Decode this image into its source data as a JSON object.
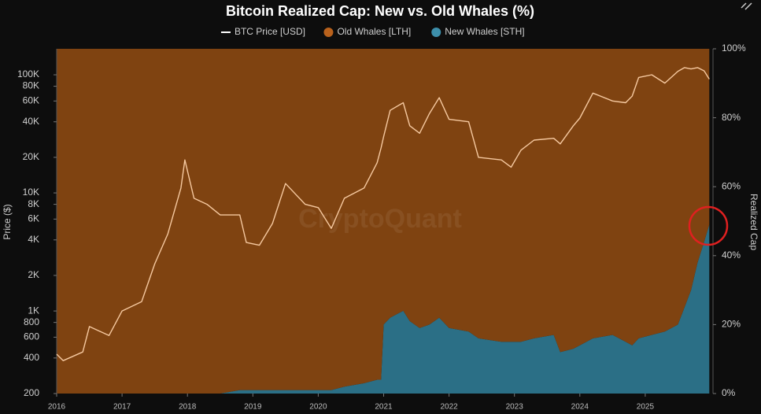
{
  "chart_data": {
    "type": "line",
    "title": "Bitcoin Realized Cap: New vs. Old Whales (%)",
    "ylabel": "Price ($)",
    "y2label": "Realized Cap",
    "watermark": "CryptoQuant",
    "log_y": true,
    "x": [
      2016.0,
      2016.1,
      2016.4,
      2016.5,
      2016.8,
      2017.0,
      2017.3,
      2017.5,
      2017.7,
      2017.9,
      2017.96,
      2018.1,
      2018.3,
      2018.5,
      2018.8,
      2018.9,
      2019.1,
      2019.3,
      2019.5,
      2019.8,
      2020.0,
      2020.2,
      2020.4,
      2020.7,
      2020.9,
      2020.96,
      2021.0,
      2021.1,
      2021.3,
      2021.4,
      2021.55,
      2021.7,
      2021.85,
      2022.0,
      2022.3,
      2022.45,
      2022.8,
      2022.95,
      2023.1,
      2023.3,
      2023.6,
      2023.7,
      2023.9,
      2024.0,
      2024.2,
      2024.5,
      2024.7,
      2024.8,
      2024.9,
      2025.1,
      2025.3,
      2025.5,
      2025.6,
      2025.7,
      2025.8,
      2025.9,
      2025.98
    ],
    "series": [
      {
        "name": "BTC Price [USD]",
        "type": "line",
        "axis": "y",
        "color": "#f6c9a0",
        "values": [
          431,
          380,
          450,
          738,
          620,
          1000,
          1200,
          2500,
          4500,
          11000,
          19000,
          9000,
          8000,
          6500,
          6500,
          3800,
          3600,
          5500,
          12000,
          8000,
          7500,
          5000,
          9000,
          11000,
          18000,
          24000,
          30000,
          50000,
          58000,
          37000,
          32000,
          47000,
          64000,
          42000,
          40000,
          20000,
          19000,
          16500,
          23000,
          28000,
          29000,
          26000,
          37000,
          43000,
          70000,
          60000,
          58000,
          66000,
          95000,
          100000,
          85000,
          107000,
          115000,
          112000,
          115000,
          108000,
          92000
        ]
      },
      {
        "name": "Old Whales [LTH]",
        "type": "area",
        "axis": "y2",
        "color": "#7f4311",
        "values": [
          100,
          100,
          100,
          100,
          100,
          100,
          100,
          100,
          100,
          100,
          100,
          100,
          100,
          100,
          99,
          99,
          99,
          99,
          99,
          99,
          99,
          99,
          98,
          97,
          96,
          96,
          80,
          78,
          76,
          79,
          81,
          80,
          78,
          81,
          82,
          84,
          85,
          85,
          85,
          84,
          83,
          88,
          87,
          86,
          84,
          83,
          85,
          86,
          84,
          83,
          82,
          80,
          75,
          70,
          62,
          56,
          51
        ]
      },
      {
        "name": "New Whales [STH]",
        "type": "area",
        "axis": "y2",
        "color": "#2b6f86",
        "values": [
          0,
          0,
          0,
          0,
          0,
          0,
          0,
          0,
          0,
          0,
          0,
          0,
          0,
          0,
          1,
          1,
          1,
          1,
          1,
          1,
          1,
          1,
          2,
          3,
          4,
          4,
          20,
          22,
          24,
          21,
          19,
          20,
          22,
          19,
          18,
          16,
          15,
          15,
          15,
          16,
          17,
          12,
          13,
          14,
          16,
          17,
          15,
          14,
          16,
          17,
          18,
          20,
          25,
          30,
          38,
          44,
          49
        ]
      }
    ],
    "xlim": [
      2016,
      2026
    ],
    "xticks": [
      2016,
      2017,
      2018,
      2019,
      2020,
      2021,
      2022,
      2023,
      2024,
      2025
    ],
    "ylim": [
      200,
      166000
    ],
    "yticks": [
      200,
      400,
      600,
      800,
      {
        "value": 1000,
        "label": "1K"
      },
      {
        "value": 2000,
        "label": "2K"
      },
      {
        "value": 4000,
        "label": "4K"
      },
      {
        "value": 6000,
        "label": "6K"
      },
      {
        "value": 8000,
        "label": "8K"
      },
      {
        "value": 10000,
        "label": "10K"
      },
      {
        "value": 20000,
        "label": "20K"
      },
      {
        "value": 40000,
        "label": "40K"
      },
      {
        "value": 60000,
        "label": "60K"
      },
      {
        "value": 80000,
        "label": "80K"
      },
      {
        "value": 100000,
        "label": "100K"
      }
    ],
    "y2lim": [
      0,
      100
    ],
    "y2ticks": [
      {
        "value": 0,
        "label": "0%"
      },
      {
        "value": 20,
        "label": "20%"
      },
      {
        "value": 40,
        "label": "40%"
      },
      {
        "value": 60,
        "label": "60%"
      },
      {
        "value": 80,
        "label": "80%"
      },
      {
        "value": 100,
        "label": "100%"
      }
    ]
  }
}
